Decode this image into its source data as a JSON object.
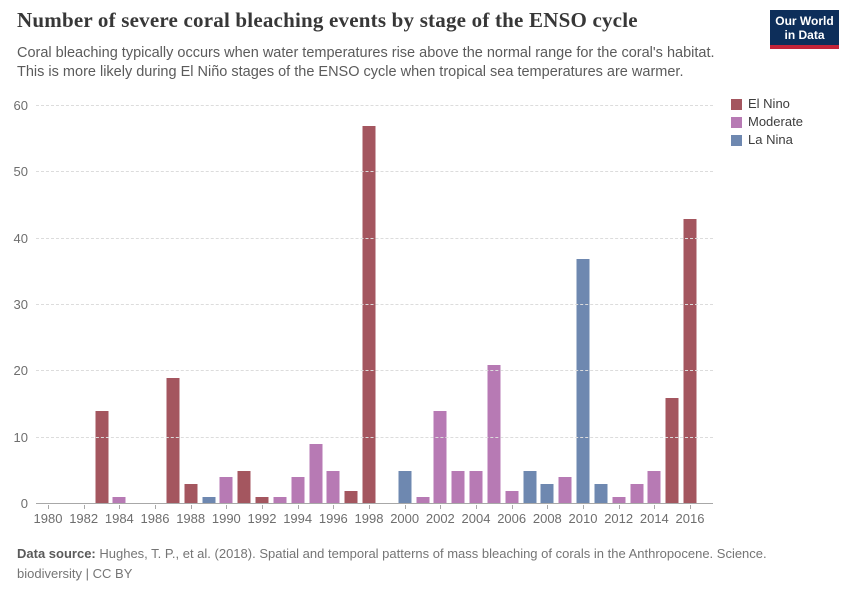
{
  "header": {
    "title": "Number of severe coral bleaching events by stage of the ENSO cycle",
    "subtitle_line1": "Coral bleaching typically occurs when water temperatures rise above the normal range for the coral's habitat.",
    "subtitle_line2": "This is more likely during El Niño stages of the ENSO cycle when tropical sea temperatures are warmer.",
    "logo_line1": "Our World",
    "logo_line2": "in Data",
    "logo_bg_color": "#0d2e5a",
    "logo_accent_color": "#c32439"
  },
  "chart_data": {
    "type": "bar",
    "title": "Number of severe coral bleaching events by stage of the ENSO cycle",
    "xlabel": "",
    "ylabel": "",
    "ylim": [
      0,
      60
    ],
    "yticks": [
      0,
      10,
      20,
      30,
      40,
      50,
      60
    ],
    "x_range": [
      1980,
      2016
    ],
    "xticks": [
      1980,
      1982,
      1984,
      1986,
      1988,
      1990,
      1992,
      1994,
      1996,
      1998,
      2000,
      2002,
      2004,
      2006,
      2008,
      2010,
      2012,
      2014,
      2016
    ],
    "grid": "horizontal-dashed",
    "legend_position": "top-right",
    "stages": [
      {
        "name": "El Nino",
        "color": "#a4565f"
      },
      {
        "name": "Moderate",
        "color": "#b77ab4"
      },
      {
        "name": "La Nina",
        "color": "#6e88b0"
      }
    ],
    "points": [
      {
        "year": 1980,
        "value": 0,
        "stage": null
      },
      {
        "year": 1981,
        "value": 0,
        "stage": null
      },
      {
        "year": 1982,
        "value": 0,
        "stage": null
      },
      {
        "year": 1983,
        "value": 14,
        "stage": "El Nino"
      },
      {
        "year": 1984,
        "value": 1,
        "stage": "Moderate"
      },
      {
        "year": 1985,
        "value": 0,
        "stage": null
      },
      {
        "year": 1986,
        "value": 0,
        "stage": null
      },
      {
        "year": 1987,
        "value": 19,
        "stage": "El Nino"
      },
      {
        "year": 1988,
        "value": 3,
        "stage": "El Nino"
      },
      {
        "year": 1989,
        "value": 1,
        "stage": "La Nina"
      },
      {
        "year": 1990,
        "value": 4,
        "stage": "Moderate"
      },
      {
        "year": 1991,
        "value": 5,
        "stage": "El Nino"
      },
      {
        "year": 1992,
        "value": 1,
        "stage": "El Nino"
      },
      {
        "year": 1993,
        "value": 1,
        "stage": "Moderate"
      },
      {
        "year": 1994,
        "value": 4,
        "stage": "Moderate"
      },
      {
        "year": 1995,
        "value": 9,
        "stage": "Moderate"
      },
      {
        "year": 1996,
        "value": 5,
        "stage": "Moderate"
      },
      {
        "year": 1997,
        "value": 2,
        "stage": "El Nino"
      },
      {
        "year": 1998,
        "value": 57,
        "stage": "El Nino"
      },
      {
        "year": 1999,
        "value": 0,
        "stage": null
      },
      {
        "year": 2000,
        "value": 5,
        "stage": "La Nina"
      },
      {
        "year": 2001,
        "value": 1,
        "stage": "Moderate"
      },
      {
        "year": 2002,
        "value": 14,
        "stage": "Moderate"
      },
      {
        "year": 2003,
        "value": 5,
        "stage": "Moderate"
      },
      {
        "year": 2004,
        "value": 5,
        "stage": "Moderate"
      },
      {
        "year": 2005,
        "value": 21,
        "stage": "Moderate"
      },
      {
        "year": 2006,
        "value": 2,
        "stage": "Moderate"
      },
      {
        "year": 2007,
        "value": 5,
        "stage": "La Nina"
      },
      {
        "year": 2008,
        "value": 3,
        "stage": "La Nina"
      },
      {
        "year": 2009,
        "value": 4,
        "stage": "Moderate"
      },
      {
        "year": 2010,
        "value": 37,
        "stage": "La Nina"
      },
      {
        "year": 2011,
        "value": 3,
        "stage": "La Nina"
      },
      {
        "year": 2012,
        "value": 1,
        "stage": "Moderate"
      },
      {
        "year": 2013,
        "value": 3,
        "stage": "Moderate"
      },
      {
        "year": 2014,
        "value": 5,
        "stage": "Moderate"
      },
      {
        "year": 2015,
        "value": 16,
        "stage": "El Nino"
      },
      {
        "year": 2016,
        "value": 43,
        "stage": "El Nino"
      }
    ]
  },
  "footer": {
    "source_label": "Data source:",
    "source_text": "Hughes, T. P., et al. (2018). Spatial and temporal patterns of mass bleaching of corals in the Anthropocene. Science.",
    "note": "biodiversity",
    "separator": "|",
    "license": "CC BY"
  }
}
